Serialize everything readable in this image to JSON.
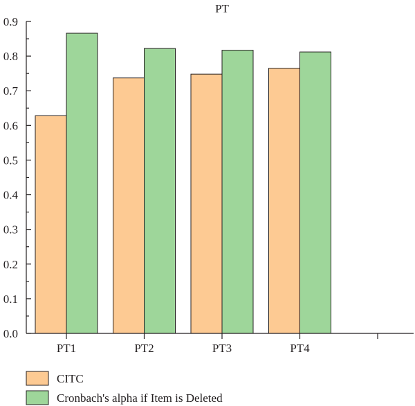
{
  "chart_data": {
    "type": "bar",
    "title": "PT",
    "xlabel": "",
    "ylabel": "",
    "categories": [
      "PT1",
      "PT2",
      "PT3",
      "PT4"
    ],
    "series": [
      {
        "name": "CITC",
        "values": [
          0.628,
          0.737,
          0.748,
          0.765
        ],
        "color": "#fdca93"
      },
      {
        "name": "Cronbach's alpha if Item is Deleted",
        "values": [
          0.866,
          0.822,
          0.817,
          0.812
        ],
        "color": "#9ed69a"
      }
    ],
    "ylim": [
      0,
      0.9
    ],
    "yticks": [
      "0.0",
      "0.1",
      "0.2",
      "0.3",
      "0.4",
      "0.5",
      "0.6",
      "0.7",
      "0.8",
      "0.9"
    ],
    "grid": false,
    "legend_position": "bottom-left"
  }
}
